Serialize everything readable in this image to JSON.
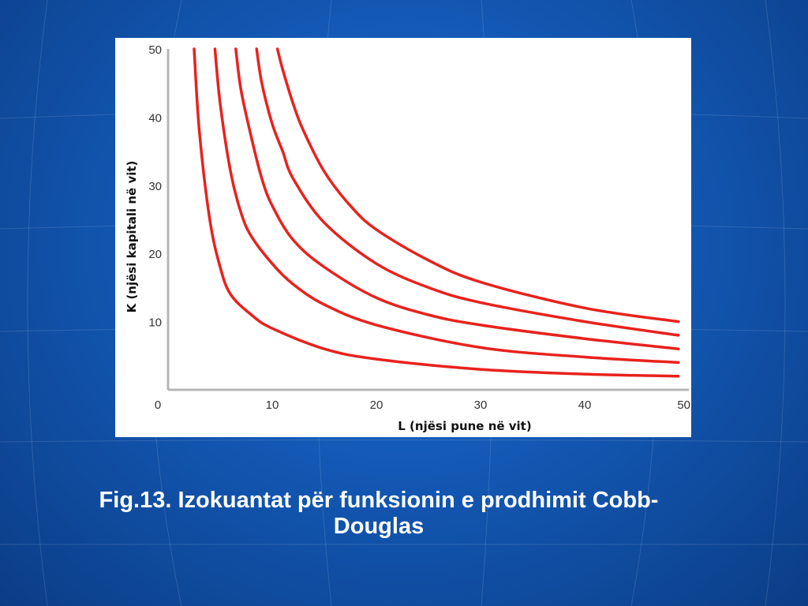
{
  "caption": {
    "line1": "Fig.13. Izokuantat për funksionin e prodhimit Cobb-",
    "line2": "Douglas"
  },
  "colors": {
    "background": "#1358b4",
    "curve": "#e8221d",
    "axis": "#b5b5b5"
  },
  "chart_data": {
    "type": "line",
    "xlabel": "L (njësi pune në vit)",
    "ylabel": "K (njësi kapitali në vit)",
    "xlim": [
      0,
      50
    ],
    "ylim": [
      0,
      50
    ],
    "x_ticks": [
      "0",
      "10",
      "20",
      "30",
      "40",
      "50"
    ],
    "y_ticks": [
      "10",
      "20",
      "30",
      "40",
      "50"
    ],
    "grid": false,
    "series": [
      {
        "x": [
          2.5,
          3,
          4,
          5,
          6,
          8,
          10,
          15,
          20,
          30,
          40,
          49
        ],
        "y": [
          50,
          38,
          25,
          18,
          14,
          11,
          9,
          6,
          4.5,
          3,
          2.3,
          2
        ]
      },
      {
        "x": [
          4.5,
          5,
          6,
          7,
          8,
          10,
          12,
          15,
          20,
          30,
          40,
          49
        ],
        "y": [
          50,
          42,
          32,
          26,
          22.5,
          18.5,
          15.5,
          12.5,
          9.5,
          6.2,
          4.8,
          4
        ]
      },
      {
        "x": [
          6.5,
          7,
          8,
          9,
          10,
          12,
          15,
          20,
          25,
          30,
          40,
          49
        ],
        "y": [
          50,
          44,
          37,
          31,
          27,
          22,
          18,
          13.5,
          11,
          9.5,
          7.5,
          6
        ]
      },
      {
        "x": [
          8.5,
          9,
          10,
          11,
          12,
          15,
          20,
          25,
          30,
          40,
          49
        ],
        "y": [
          50,
          45,
          39,
          35,
          31,
          24.5,
          18.5,
          15,
          12.8,
          10,
          8
        ]
      },
      {
        "x": [
          10.5,
          11,
          12,
          13,
          15,
          17.5,
          20,
          25,
          30,
          40,
          49
        ],
        "y": [
          50,
          47,
          42,
          38,
          32,
          27,
          23.5,
          19,
          15.8,
          12,
          10
        ]
      }
    ]
  }
}
